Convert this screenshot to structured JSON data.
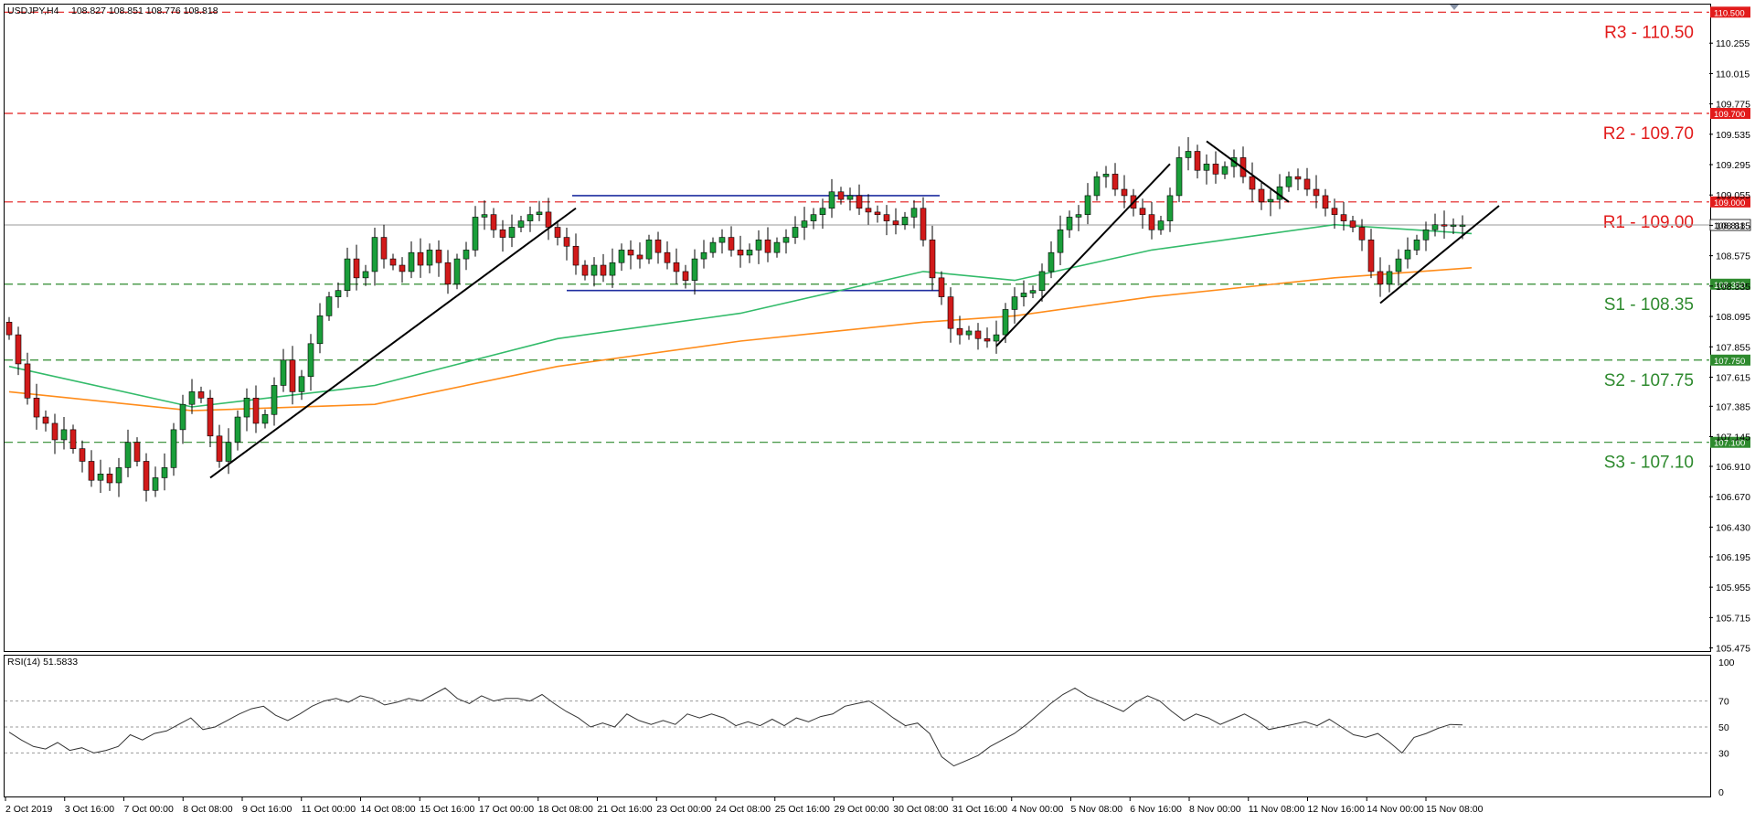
{
  "header": {
    "symbol": "USDJPY,H4",
    "ohlc": "108.827 108.851 108.776 108.818"
  },
  "rsi_header": "RSI(14) 51.5833",
  "colors": {
    "bull": "#1a9e3a",
    "bear": "#d11a1a",
    "ma_green": "#33bb6a",
    "ma_orange": "#ff8c1a",
    "resistance": "#e21b1b",
    "support": "#2e8a2e",
    "trend": "#000000",
    "range": "#1f2fa0"
  },
  "current_price": {
    "value": 108.818,
    "label": "108.818"
  },
  "levels": [
    {
      "name": "R3",
      "value": 110.5,
      "label": "R3 - 110.50",
      "tag": "110.500",
      "kind": "resistance"
    },
    {
      "name": "R2",
      "value": 109.7,
      "label": "R2 - 109.70",
      "tag": "109.700",
      "kind": "resistance"
    },
    {
      "name": "R1",
      "value": 109.0,
      "label": "R1 - 109.00",
      "tag": "109.000",
      "kind": "resistance"
    },
    {
      "name": "S1",
      "value": 108.35,
      "label": "S1 - 108.35",
      "tag": "108.350",
      "kind": "support"
    },
    {
      "name": "S2",
      "value": 107.75,
      "label": "S2 - 107.75",
      "tag": "107.750",
      "kind": "support"
    },
    {
      "name": "S3",
      "value": 107.1,
      "label": "S3 - 107.10",
      "tag": "107.100",
      "kind": "support"
    }
  ],
  "chart_data": {
    "type": "candlestick",
    "ylim": [
      105.45,
      110.56
    ],
    "price_ticks": [
      "110.255",
      "110.015",
      "109.775",
      "109.535",
      "109.295",
      "109.055",
      "108.815",
      "108.575",
      "108.335",
      "108.095",
      "107.855",
      "107.615",
      "107.385",
      "107.145",
      "106.910",
      "106.670",
      "106.430",
      "106.195",
      "105.955",
      "105.715",
      "105.475"
    ],
    "time_labels": [
      "2 Oct 2019",
      "3 Oct 16:00",
      "7 Oct 00:00",
      "8 Oct 08:00",
      "9 Oct 16:00",
      "11 Oct 00:00",
      "14 Oct 08:00",
      "15 Oct 16:00",
      "17 Oct 00:00",
      "18 Oct 08:00",
      "21 Oct 16:00",
      "23 Oct 00:00",
      "24 Oct 08:00",
      "25 Oct 16:00",
      "29 Oct 00:00",
      "30 Oct 08:00",
      "31 Oct 16:00",
      "4 Nov 00:00",
      "5 Nov 08:00",
      "6 Nov 16:00",
      "8 Nov 00:00",
      "11 Nov 08:00",
      "12 Nov 16:00",
      "14 Nov 00:00",
      "15 Nov 08:00"
    ],
    "candle_count": 160,
    "closes": [
      107.95,
      107.72,
      107.45,
      107.3,
      107.25,
      107.12,
      107.2,
      107.05,
      106.95,
      106.8,
      106.85,
      106.78,
      106.9,
      107.1,
      106.95,
      106.72,
      106.82,
      106.9,
      107.2,
      107.4,
      107.5,
      107.45,
      107.15,
      106.95,
      107.1,
      107.3,
      107.45,
      107.25,
      107.32,
      107.55,
      107.75,
      107.5,
      107.62,
      107.88,
      108.1,
      108.25,
      108.3,
      108.55,
      108.4,
      108.45,
      108.72,
      108.55,
      108.5,
      108.45,
      108.6,
      108.5,
      108.62,
      108.52,
      108.35,
      108.55,
      108.62,
      108.88,
      108.9,
      108.78,
      108.72,
      108.8,
      108.85,
      108.9,
      108.92,
      108.8,
      108.72,
      108.65,
      108.5,
      108.42,
      108.5,
      108.42,
      108.52,
      108.62,
      108.58,
      108.55,
      108.7,
      108.6,
      108.52,
      108.45,
      108.38,
      108.55,
      108.6,
      108.68,
      108.72,
      108.62,
      108.58,
      108.62,
      108.7,
      108.6,
      108.68,
      108.72,
      108.8,
      108.85,
      108.9,
      108.95,
      109.08,
      109.02,
      109.05,
      108.95,
      108.92,
      108.9,
      108.85,
      108.82,
      108.88,
      108.95,
      108.7,
      108.4,
      108.25,
      108.0,
      107.95,
      107.98,
      107.92,
      107.9,
      107.95,
      108.15,
      108.25,
      108.28,
      108.3,
      108.45,
      108.6,
      108.78,
      108.88,
      108.9,
      109.05,
      109.2,
      109.22,
      109.1,
      109.05,
      108.95,
      108.9,
      108.78,
      108.85,
      109.05,
      109.35,
      109.4,
      109.25,
      109.3,
      109.22,
      109.28,
      109.35,
      109.2,
      109.1,
      109.0,
      109.02,
      109.12,
      109.2,
      109.18,
      109.1,
      109.05,
      108.95,
      108.9,
      108.85,
      108.8,
      108.7,
      108.45,
      108.35,
      108.45,
      108.55,
      108.62,
      108.7,
      108.78,
      108.82,
      108.81,
      108.818,
      108.818
    ],
    "ma_green": [
      [
        0,
        107.7
      ],
      [
        20,
        107.38
      ],
      [
        40,
        107.55
      ],
      [
        60,
        107.92
      ],
      [
        80,
        108.12
      ],
      [
        100,
        108.45
      ],
      [
        110,
        108.38
      ],
      [
        125,
        108.62
      ],
      [
        145,
        108.82
      ],
      [
        160,
        108.75
      ]
    ],
    "ma_orange": [
      [
        0,
        107.5
      ],
      [
        20,
        107.35
      ],
      [
        40,
        107.4
      ],
      [
        60,
        107.7
      ],
      [
        80,
        107.9
      ],
      [
        100,
        108.05
      ],
      [
        110,
        108.1
      ],
      [
        125,
        108.25
      ],
      [
        145,
        108.4
      ],
      [
        160,
        108.48
      ]
    ],
    "trendlines": [
      {
        "from": [
          22,
          106.82
        ],
        "to": [
          62,
          108.95
        ]
      },
      {
        "from": [
          108,
          107.86
        ],
        "to": [
          127,
          109.3
        ]
      },
      {
        "from": [
          131,
          109.48
        ],
        "to": [
          140,
          109.0
        ]
      },
      {
        "from": [
          150,
          108.2
        ],
        "to": [
          163,
          108.97
        ]
      }
    ],
    "range_box": {
      "x0": 61,
      "x1": 101,
      "top": 109.05,
      "bottom": 108.3
    },
    "rsi": {
      "ylim": [
        0,
        100
      ],
      "ticks": [
        "100",
        "70",
        "50",
        "30",
        "0"
      ],
      "values": [
        46,
        40,
        35,
        33,
        38,
        32,
        34,
        30,
        32,
        35,
        44,
        40,
        45,
        47,
        52,
        57,
        48,
        50,
        55,
        60,
        64,
        66,
        59,
        55,
        60,
        66,
        70,
        72,
        69,
        74,
        72,
        67,
        69,
        72,
        70,
        75,
        80,
        72,
        68,
        74,
        70,
        72,
        72,
        70,
        75,
        68,
        62,
        57,
        50,
        53,
        50,
        60,
        55,
        52,
        55,
        52,
        60,
        57,
        60,
        57,
        51,
        54,
        51,
        56,
        51,
        57,
        54,
        58,
        60,
        66,
        68,
        70,
        64,
        57,
        51,
        53,
        45,
        27,
        20,
        24,
        28,
        35,
        40,
        45,
        52,
        60,
        68,
        75,
        80,
        74,
        70,
        66,
        62,
        69,
        74,
        70,
        62,
        55,
        60,
        57,
        52,
        56,
        60,
        55,
        48,
        50,
        52,
        54,
        51,
        56,
        50,
        44,
        42,
        45,
        38,
        30,
        42,
        45,
        49,
        52,
        51.58
      ]
    }
  }
}
